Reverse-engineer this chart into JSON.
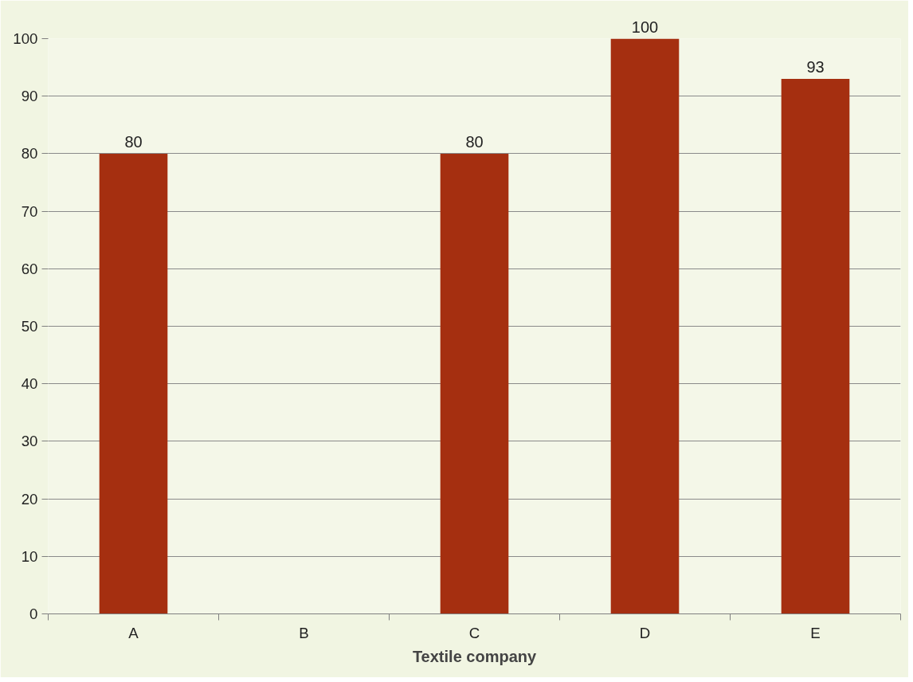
{
  "chart_data": {
    "type": "bar",
    "xlabel": "Textile company",
    "categories": [
      "A",
      "B",
      "C",
      "D",
      "E"
    ],
    "values": [
      80,
      null,
      80,
      100,
      93
    ],
    "color": "#a52f10",
    "ylim": [
      0,
      100
    ],
    "yticks": [
      0,
      10,
      20,
      30,
      40,
      50,
      60,
      70,
      80,
      90,
      100
    ],
    "grid": "y",
    "data_labels": true
  }
}
